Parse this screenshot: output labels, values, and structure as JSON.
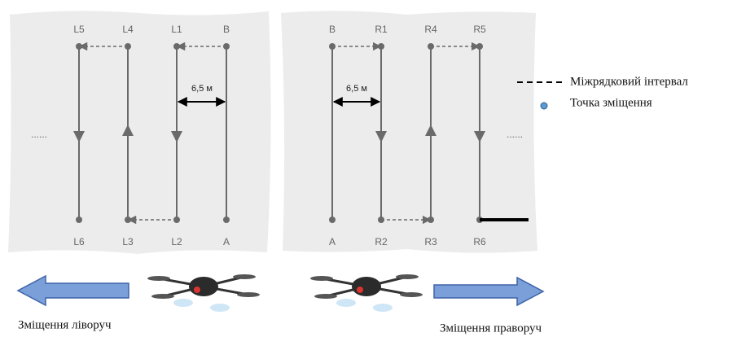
{
  "left_panel": {
    "top_labels": [
      "L5",
      "L4",
      "L1",
      "B"
    ],
    "bottom_labels": [
      "L6",
      "L3",
      "L2",
      "A"
    ],
    "dimension": "6,5 м"
  },
  "right_panel": {
    "top_labels": [
      "B",
      "R1",
      "R4",
      "R5"
    ],
    "bottom_labels": [
      "A",
      "R2",
      "R3",
      "R6"
    ],
    "dimension": "6,5 м"
  },
  "legend": {
    "items": [
      "Міжрядковий інтервал",
      "Точка зміщення"
    ]
  },
  "captions": {
    "left": "Зміщення ліворуч",
    "right": "Зміщення праворуч"
  }
}
